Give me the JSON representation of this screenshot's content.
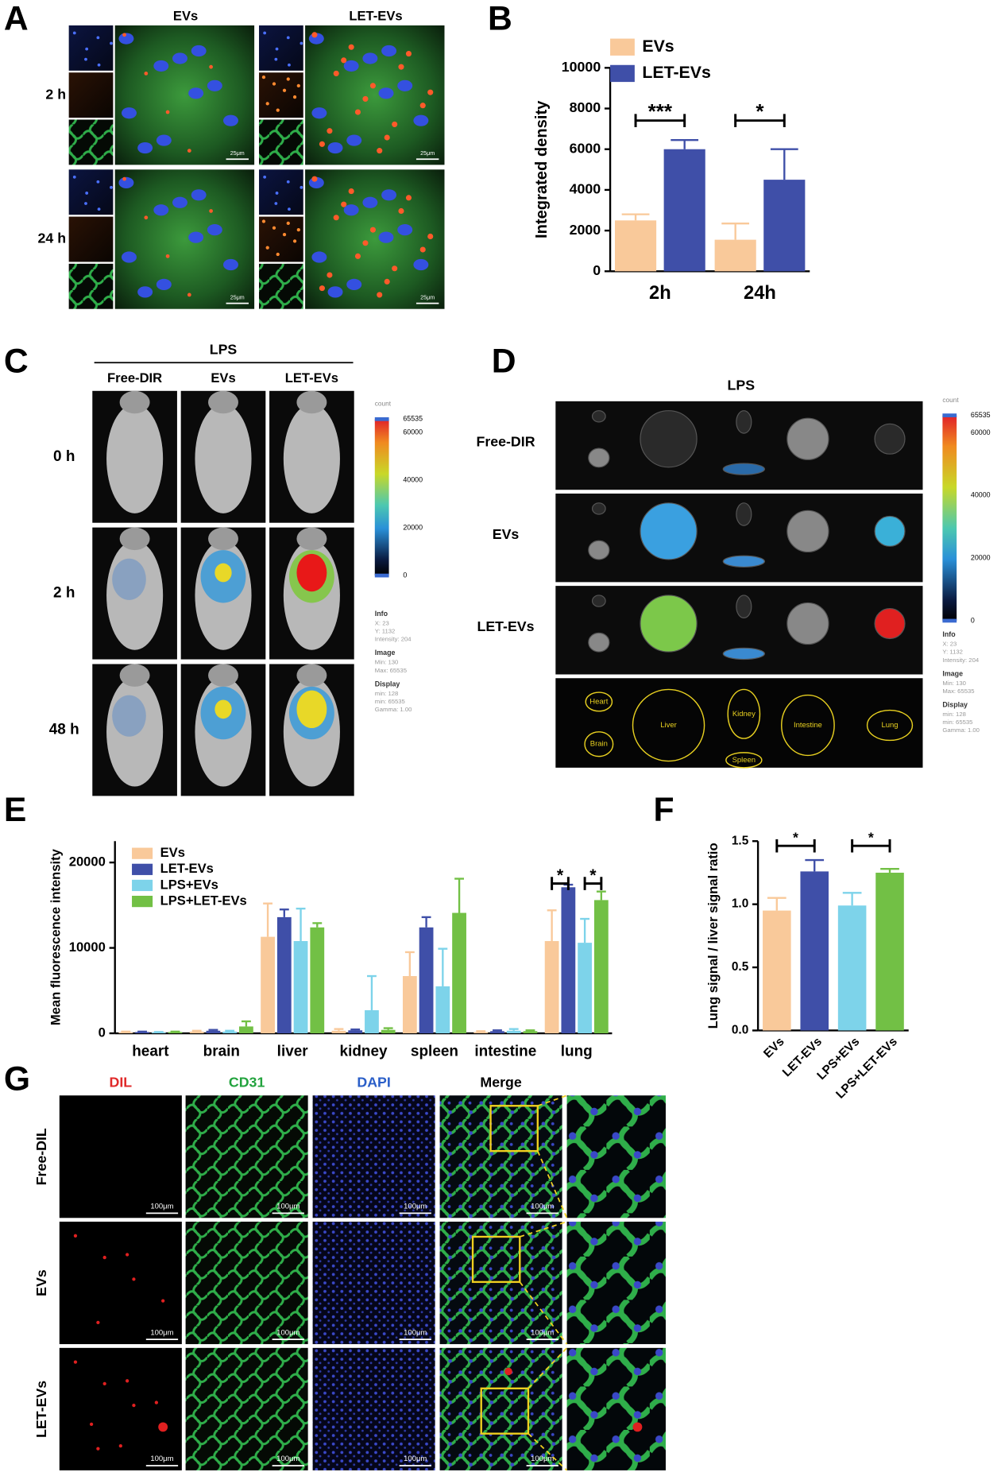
{
  "figure": {
    "panel_labels": [
      "A",
      "B",
      "C",
      "D",
      "E",
      "F",
      "G"
    ],
    "panel_a": {
      "columns": [
        "EVs",
        "LET-EVs"
      ],
      "rows": [
        "2 h",
        "24 h"
      ],
      "scale_bar": "25μm"
    },
    "panel_c": {
      "header": "LPS",
      "columns": [
        "Free-DIR",
        "EVs",
        "LET-EVs"
      ],
      "rows": [
        "0 h",
        "2 h",
        "48 h"
      ]
    },
    "panel_d": {
      "header": "LPS",
      "rows": [
        "Free-DIR",
        "EVs",
        "LET-EVs"
      ],
      "organs": [
        "Heart",
        "Brain",
        "Liver",
        "Kidney",
        "Spleen",
        "Intestine",
        "Lung"
      ]
    },
    "imaging_scale": {
      "title": "count",
      "ticks": [
        "65535",
        "60000",
        "40000",
        "20000",
        "0"
      ],
      "info": [
        "Info",
        "X: 23",
        "Y: 1132",
        "Intensity: 204",
        "Image",
        "Min: 130",
        "Max: 65535",
        "Display",
        "min: 128",
        "min: 65535",
        "Gamma: 1.00"
      ]
    },
    "panel_g": {
      "columns": [
        "DIL",
        "CD31",
        "DAPI",
        "Merge"
      ],
      "rows": [
        "Free-DIL",
        "EVs",
        "LET-EVs"
      ],
      "scale_bar": "100μm"
    }
  },
  "chart_data": [
    {
      "type": "bar",
      "y_label": "Integrated density",
      "categories": [
        "2h",
        "24h"
      ],
      "series": [
        {
          "name": "EVs",
          "color": "#f9c99a",
          "values": [
            2500,
            1550
          ],
          "errors": [
            300,
            800
          ]
        },
        {
          "name": "LET-EVs",
          "color": "#3f4fa8",
          "values": [
            6000,
            4500
          ],
          "errors": [
            450,
            1500
          ]
        }
      ],
      "ylim": [
        0,
        10000
      ],
      "yticks": [
        0,
        2000,
        4000,
        6000,
        8000,
        10000
      ],
      "significance": [
        {
          "label": "***"
        },
        {
          "label": "*"
        }
      ],
      "legend": "top-left"
    },
    {
      "type": "bar",
      "y_label": "Mean fluorescence intensity",
      "categories": [
        "heart",
        "brain",
        "liver",
        "kidney",
        "spleen",
        "intestine",
        "lung"
      ],
      "series": [
        {
          "name": "EVs",
          "color": "#f9c99a",
          "values": [
            100,
            200,
            11300,
            300,
            6700,
            150,
            10800
          ],
          "errors": [
            100,
            100,
            3900,
            200,
            2800,
            100,
            3600
          ]
        },
        {
          "name": "LET-EVs",
          "color": "#3f4fa8",
          "values": [
            150,
            300,
            13600,
            350,
            12400,
            250,
            17100
          ],
          "errors": [
            50,
            100,
            900,
            100,
            1200,
            100,
            300
          ]
        },
        {
          "name": "LPS+EVs",
          "color": "#7dd3ea",
          "values": [
            100,
            200,
            10800,
            2700,
            5500,
            300,
            10600
          ],
          "errors": [
            50,
            100,
            3800,
            4000,
            4400,
            200,
            2800
          ]
        },
        {
          "name": "LPS+LET-EVs",
          "color": "#72c045",
          "values": [
            150,
            800,
            12400,
            400,
            14100,
            250,
            15600
          ],
          "errors": [
            50,
            600,
            500,
            200,
            4000,
            100,
            1000
          ]
        }
      ],
      "ylim": [
        0,
        22500
      ],
      "yticks": [
        0,
        10000,
        20000
      ],
      "significance": [
        {
          "label": "*"
        },
        {
          "label": "*"
        }
      ],
      "legend": "top-left"
    },
    {
      "type": "bar",
      "y_label": "Lung signal / liver signal ratio",
      "categories": [
        "EVs",
        "LET-EVs",
        "LPS+EVs",
        "LPS+LET-EVs"
      ],
      "values": [
        0.95,
        1.26,
        0.99,
        1.25
      ],
      "errors": [
        0.1,
        0.09,
        0.1,
        0.03
      ],
      "colors": [
        "#f9c99a",
        "#3f4fa8",
        "#7dd3ea",
        "#72c045"
      ],
      "ylim": [
        0,
        1.5
      ],
      "yticks": [
        {
          "value": 0,
          "label": "0.0"
        },
        0.5,
        {
          "value": 1,
          "label": "1.0"
        },
        1.5
      ],
      "significance": [
        {
          "label": "*"
        },
        {
          "label": "*"
        }
      ]
    }
  ]
}
